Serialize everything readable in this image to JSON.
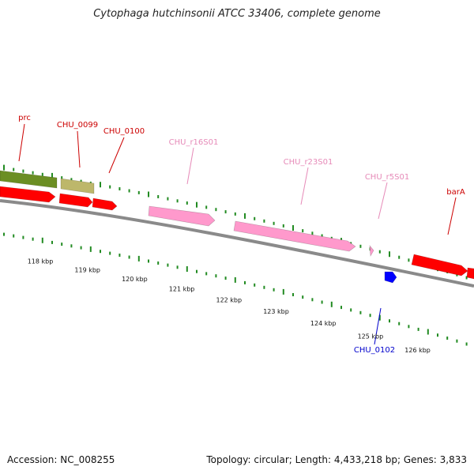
{
  "title": "Cytophaga hutchinsonii ATCC 33406, complete genome",
  "footer": {
    "accession": "Accession: NC_008255",
    "summary": "Topology: circular; Length: 4,433,218 bp; Genes: 3,833"
  },
  "colors": {
    "backbone": "#8a8a8a",
    "cds": "#ff0000",
    "rrna": "#ff99cc",
    "trna": "#ff99cc",
    "other_blue": "#0000ff",
    "olive_feature": "#6b8e23",
    "khaki_feature": "#bdb76b",
    "tick_green": "#228b22",
    "label_red": "#cc0000",
    "label_pink": "#e68ab8",
    "label_blue": "#0000cc"
  },
  "ruler_labels": [
    "118 kbp",
    "119 kbp",
    "120 kbp",
    "121 kbp",
    "122 kbp",
    "123 kbp",
    "124 kbp",
    "125 kbp",
    "126 kbp"
  ],
  "features": [
    {
      "id": "olive",
      "label": "",
      "type": "other",
      "color": "olive_feature"
    },
    {
      "id": "khaki",
      "label": "",
      "type": "other",
      "color": "khaki_feature"
    },
    {
      "id": "prc",
      "label": "prc",
      "type": "cds",
      "color": "cds"
    },
    {
      "id": "chu0099",
      "label": "CHU_0099",
      "type": "cds",
      "color": "cds"
    },
    {
      "id": "chu0100",
      "label": "CHU_0100",
      "type": "cds",
      "color": "cds"
    },
    {
      "id": "r16s",
      "label": "CHU_r16S01",
      "type": "rrna",
      "color": "rrna"
    },
    {
      "id": "r23s",
      "label": "CHU_r23S01",
      "type": "rrna",
      "color": "rrna"
    },
    {
      "id": "r5s",
      "label": "CHU_r5S01",
      "type": "rrna",
      "color": "rrna"
    },
    {
      "id": "chu0102",
      "label": "CHU_0102",
      "type": "other",
      "color": "other_blue"
    },
    {
      "id": "bara",
      "label": "barA",
      "type": "cds",
      "color": "cds"
    },
    {
      "id": "next",
      "label": "",
      "type": "cds",
      "color": "cds"
    }
  ]
}
